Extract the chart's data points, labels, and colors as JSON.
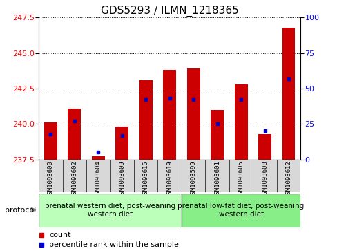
{
  "title": "GDS5293 / ILMN_1218365",
  "samples": [
    "GSM1093600",
    "GSM1093602",
    "GSM1093604",
    "GSM1093609",
    "GSM1093615",
    "GSM1093619",
    "GSM1093599",
    "GSM1093601",
    "GSM1093605",
    "GSM1093608",
    "GSM1093612"
  ],
  "count_values": [
    240.1,
    241.1,
    237.7,
    239.8,
    243.1,
    243.8,
    243.9,
    241.0,
    242.8,
    239.3,
    246.8
  ],
  "percentile_values": [
    18,
    27,
    5,
    17,
    42,
    43,
    42,
    25,
    42,
    20,
    57
  ],
  "ylim_left": [
    237.5,
    247.5
  ],
  "ylim_right": [
    0,
    100
  ],
  "yticks_left": [
    237.5,
    240.0,
    242.5,
    245.0,
    247.5
  ],
  "yticks_right": [
    0,
    25,
    50,
    75,
    100
  ],
  "bar_color": "#cc0000",
  "percentile_color": "#0000cc",
  "bar_bottom": 237.5,
  "group1_label": "prenatal western diet, post-weaning\nwestern diet",
  "group2_label": "prenatal low-fat diet, post-weaning\nwestern diet",
  "group1_indices": [
    0,
    1,
    2,
    3,
    4,
    5
  ],
  "group2_indices": [
    6,
    7,
    8,
    9,
    10
  ],
  "group1_color": "#bbffbb",
  "group2_color": "#88ee88",
  "protocol_label": "protocol",
  "legend_count": "count",
  "legend_percentile": "percentile rank within the sample",
  "title_fontsize": 11,
  "tick_fontsize": 8,
  "bar_width": 0.55
}
